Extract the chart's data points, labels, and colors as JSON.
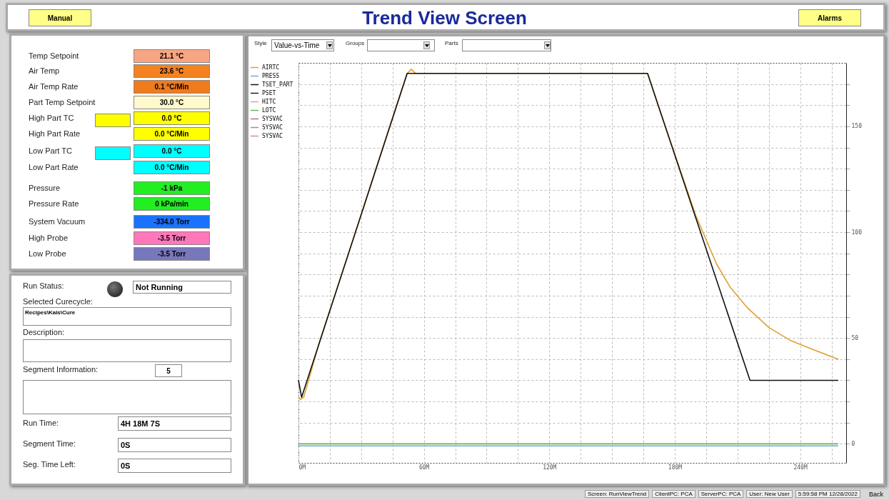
{
  "chart_data": [
    {
      "type": "other",
      "title": "Trend View Screen",
      "annotations": [
        "Manual",
        "Alarms",
        "Temp Setpoint",
        "21.1 °C",
        "Air Temp",
        "23.6 °C",
        "Air Temp Rate",
        "0.1 °C/Min",
        "Part Temp Setpoint",
        "30.0 °C",
        "High Part TC",
        "0.0 °C",
        "High Part Rate",
        "0.0 °C/Min",
        "Low Part TC",
        "0.0 °C",
        "Low Part Rate",
        "0.0 °C/Min",
        "Pressure",
        "-1 kPa",
        "Pressure Rate",
        "0 kPa/min",
        "System Vacuum",
        "-334.0 Torr",
        "High Probe",
        "-3.5 Torr",
        "Low Probe",
        "-3.5 Torr",
        "Run Status:",
        "Not Running",
        "Selected Curecycle:",
        "Recipes\\Kais\\Cure",
        "Description:",
        "Segment Information:",
        "5",
        "Run Time:",
        "4H 18M 7S",
        "Segment Time:",
        "0S",
        "Seg. Time Left:",
        "0S",
        "Style",
        "Value-vs-Time",
        "Groups",
        "Parts",
        "Screen: RunViewTrend",
        "ClientPC: PCA",
        "ServerPC: PCA",
        "User: New User",
        "5:59:58 PM 12/28/2022",
        "Back"
      ]
    },
    {
      "type": "line",
      "legend": "left",
      "grid": true,
      "marker": "none",
      "line_style": "solid",
      "xlim": [
        0,
        262
      ],
      "ylim": [
        -9,
        180
      ],
      "xticks": [
        {
          "value": 0,
          "label": "0M"
        },
        {
          "value": 15,
          "label": null
        },
        {
          "value": 30,
          "label": null
        },
        {
          "value": 45,
          "label": null
        },
        {
          "value": 60,
          "label": "60M"
        },
        {
          "value": 75,
          "label": null
        },
        {
          "value": 90,
          "label": null
        },
        {
          "value": 105,
          "label": null
        },
        {
          "value": 120,
          "label": "120M"
        },
        {
          "value": 135,
          "label": null
        },
        {
          "value": 150,
          "label": null
        },
        {
          "value": 165,
          "label": null
        },
        {
          "value": 180,
          "label": "180M"
        },
        {
          "value": 195,
          "label": null
        },
        {
          "value": 210,
          "label": null
        },
        {
          "value": 225,
          "label": null
        },
        {
          "value": 240,
          "label": "240M"
        },
        {
          "value": 255,
          "label": null
        }
      ],
      "yticks": [
        0,
        {
          "value": 10,
          "label": null
        },
        {
          "value": 20,
          "label": null
        },
        {
          "value": 30,
          "label": null
        },
        {
          "value": 40,
          "label": null
        },
        50,
        {
          "value": 60,
          "label": null
        },
        {
          "value": 70,
          "label": null
        },
        {
          "value": 80,
          "label": null
        },
        {
          "value": 90,
          "label": null
        },
        100,
        {
          "value": 110,
          "label": null
        },
        {
          "value": 120,
          "label": null
        },
        {
          "value": 130,
          "label": null
        },
        {
          "value": 140,
          "label": null
        },
        150,
        {
          "value": 160,
          "label": null
        },
        {
          "value": 170,
          "label": null
        }
      ],
      "series": [
        {
          "name": "AIRTC",
          "color": "#e0a030",
          "x": [
            0,
            1,
            2.5,
            10,
            20,
            30,
            40,
            50,
            52,
            54,
            56,
            60,
            100,
            140,
            160,
            167,
            172,
            180,
            190,
            200,
            206.5,
            215,
            225,
            235,
            245,
            258
          ],
          "values": [
            22,
            21,
            22,
            48,
            78,
            108,
            139,
            169,
            175,
            177,
            175,
            175,
            175,
            175,
            175,
            175,
            160,
            137,
            108,
            85,
            74,
            64,
            55,
            49,
            45,
            40
          ]
        },
        {
          "name": "PRESS",
          "color": "#7fa7c9",
          "x": [
            0,
            60,
            120,
            180,
            258
          ],
          "values": [
            -1,
            -1,
            -1,
            -1,
            -1
          ]
        },
        {
          "name": "TSET_PART",
          "color": "#111111",
          "x": [
            0,
            1.5,
            52,
            167,
            216,
            258
          ],
          "values": [
            30,
            22,
            175,
            175,
            30,
            30
          ]
        },
        {
          "name": "PSET",
          "color": "#1a1a5e"
        },
        {
          "name": "HITC",
          "color": "#d9a0a0"
        },
        {
          "name": "LOTC",
          "color": "#5cb85c",
          "x": [
            0,
            258
          ],
          "values": [
            0,
            0
          ]
        },
        {
          "name": "SYSVAC",
          "color": "#c07070"
        },
        {
          "name": "SYSVAC",
          "color": "#c08080"
        },
        {
          "name": "SYSVAC",
          "color": "#d09090"
        }
      ]
    }
  ]
}
